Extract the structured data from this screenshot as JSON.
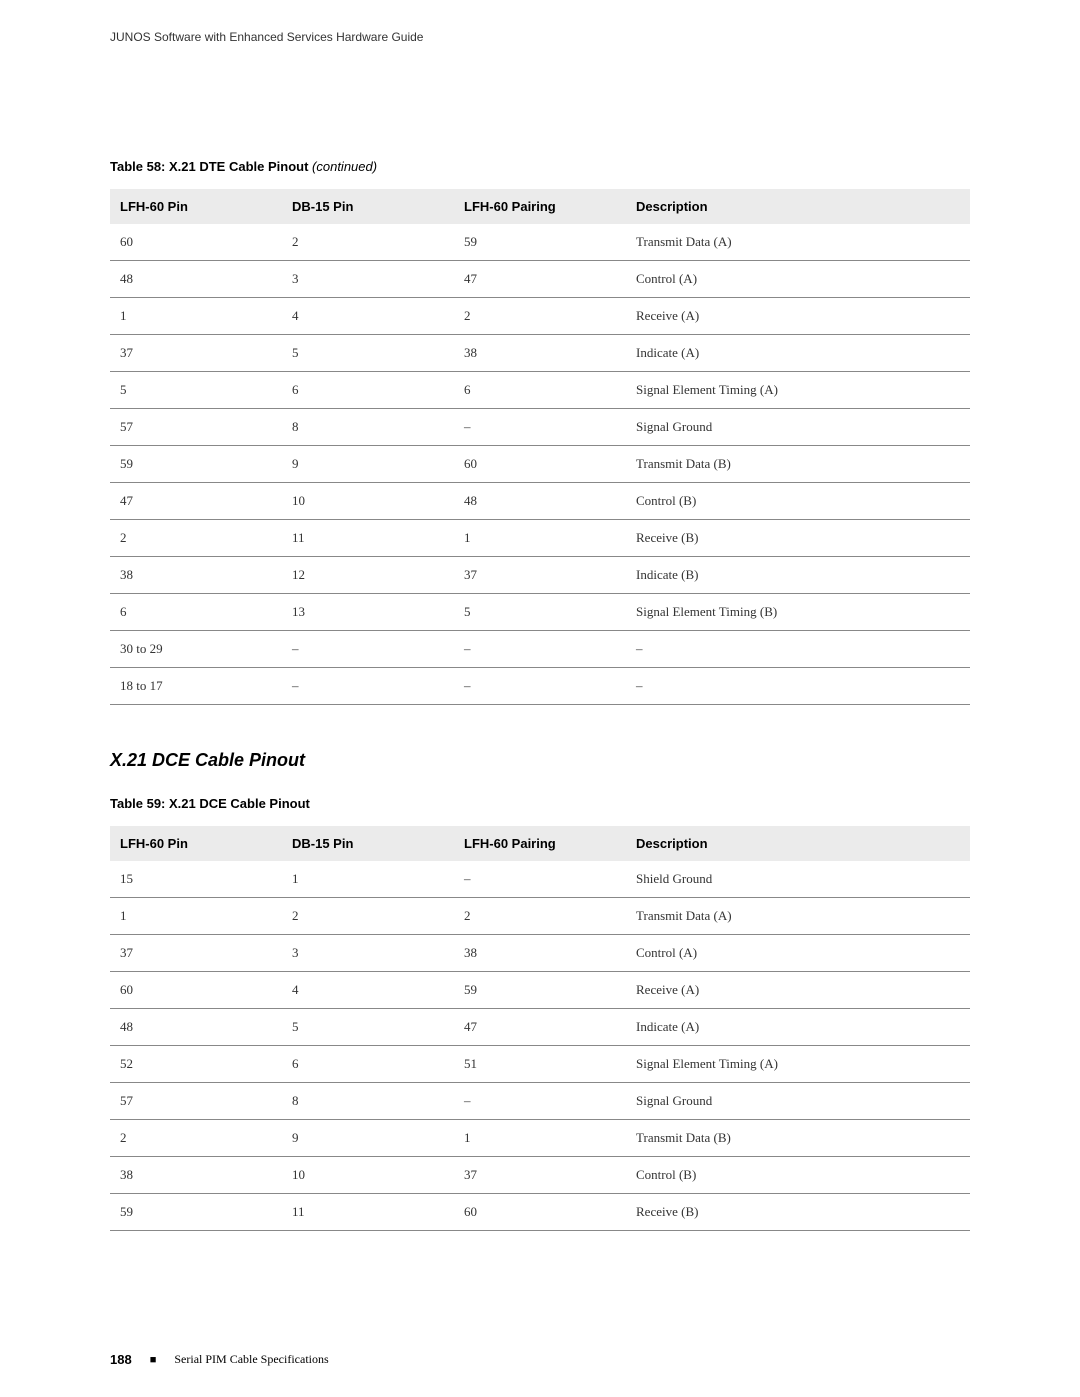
{
  "header": {
    "text": "JUNOS Software with Enhanced Services Hardware Guide"
  },
  "table58": {
    "title_bold": "Table 58: X.21 DTE Cable Pinout",
    "title_italic": " (continued)",
    "columns": [
      "LFH-60 Pin",
      "DB-15 Pin",
      "LFH-60 Pairing",
      "Description"
    ],
    "rows": [
      [
        "60",
        "2",
        "59",
        "Transmit Data (A)"
      ],
      [
        "48",
        "3",
        "47",
        "Control (A)"
      ],
      [
        "1",
        "4",
        "2",
        "Receive (A)"
      ],
      [
        "37",
        "5",
        "38",
        "Indicate (A)"
      ],
      [
        "5",
        "6",
        "6",
        "Signal Element Timing (A)"
      ],
      [
        "57",
        "8",
        "–",
        "Signal Ground"
      ],
      [
        "59",
        "9",
        "60",
        "Transmit Data (B)"
      ],
      [
        "47",
        "10",
        "48",
        "Control (B)"
      ],
      [
        "2",
        "11",
        "1",
        "Receive (B)"
      ],
      [
        "38",
        "12",
        "37",
        "Indicate (B)"
      ],
      [
        "6",
        "13",
        "5",
        "Signal Element Timing (B)"
      ],
      [
        "30 to 29",
        "–",
        "–",
        "–"
      ],
      [
        "18 to 17",
        "–",
        "–",
        "–"
      ]
    ]
  },
  "section_heading": "X.21 DCE Cable Pinout",
  "table59": {
    "title_bold": "Table 59: X.21 DCE Cable Pinout",
    "columns": [
      "LFH-60 Pin",
      "DB-15 Pin",
      "LFH-60 Pairing",
      "Description"
    ],
    "rows": [
      [
        "15",
        "1",
        "–",
        "Shield Ground"
      ],
      [
        "1",
        "2",
        "2",
        "Transmit Data (A)"
      ],
      [
        "37",
        "3",
        "38",
        "Control (A)"
      ],
      [
        "60",
        "4",
        "59",
        "Receive (A)"
      ],
      [
        "48",
        "5",
        "47",
        "Indicate (A)"
      ],
      [
        "52",
        "6",
        "51",
        "Signal Element Timing (A)"
      ],
      [
        "57",
        "8",
        "–",
        "Signal Ground"
      ],
      [
        "2",
        "9",
        "1",
        "Transmit Data (B)"
      ],
      [
        "38",
        "10",
        "37",
        "Control (B)"
      ],
      [
        "59",
        "11",
        "60",
        "Receive (B)"
      ]
    ]
  },
  "footer": {
    "page_number": "188",
    "bullet": "■",
    "text": "Serial PIM Cable Specifications"
  }
}
